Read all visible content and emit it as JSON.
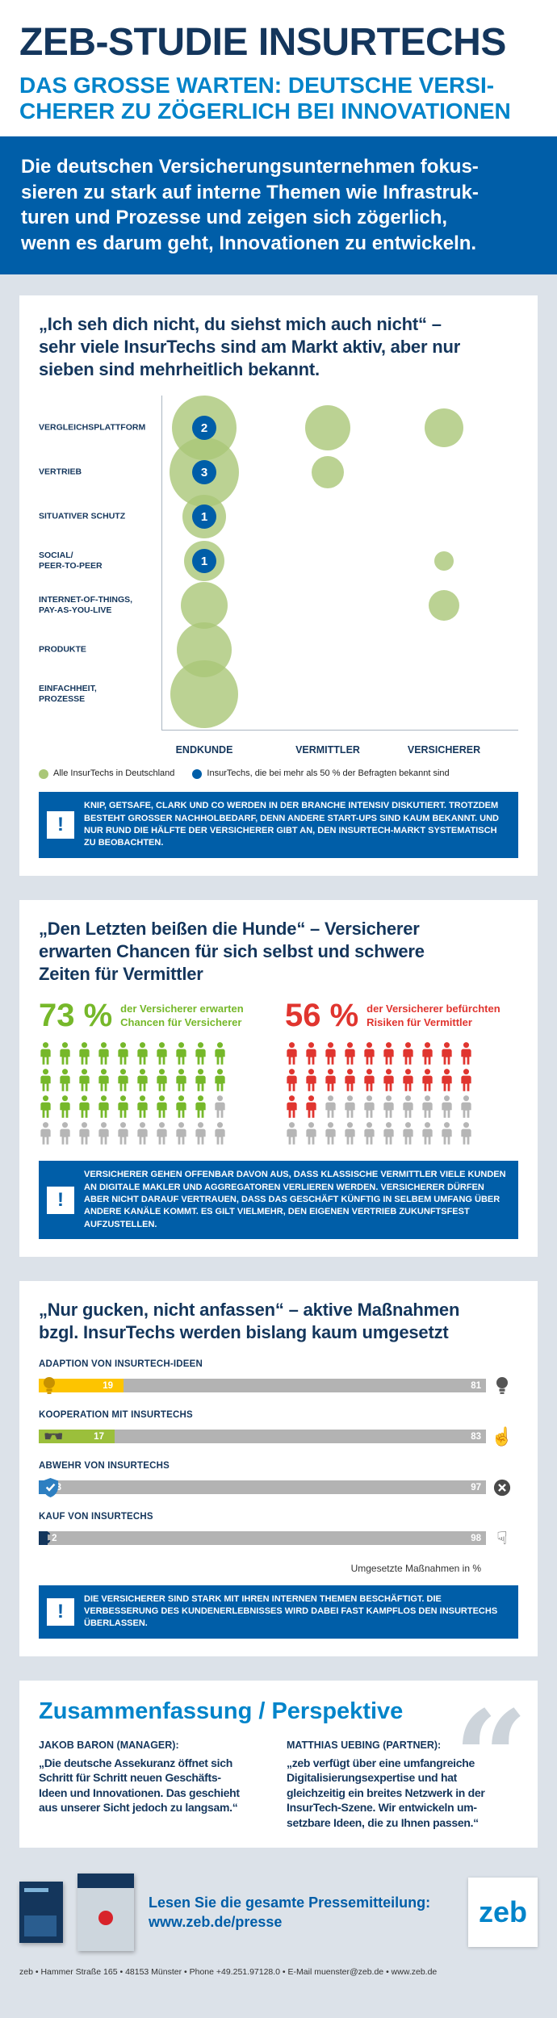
{
  "ui": {
    "warning_mark": "!",
    "quote_open": "„",
    "quote_close": "“"
  },
  "colors": {
    "navy": "#14365c",
    "blue": "#0084ca",
    "band_blue": "#005ea8",
    "bubble_green": "#aac778",
    "green": "#76b82a",
    "red": "#e0352f",
    "yellow": "#fdc400",
    "gray_bar": "#b3b3b3",
    "page_bg": "#dce2e9"
  },
  "header": {
    "title": "ZEB-STUDIE INSURTECHS",
    "subtitle": "DAS GROSSE WARTEN: DEUTSCHE VERSI-\nCHERER ZU ZÖGERLICH BEI INNOVATIONEN"
  },
  "intro": "Die deutschen Versicherungsunternehmen fokus-\nsieren zu stark auf interne Themen wie Infrastruk-\nturen und Prozesse und zeigen sich zögerlich,\nwenn es darum geht, Innovationen zu entwickeln.",
  "section1": {
    "title": "„Ich seh dich nicht, du siehst mich auch nicht“ –\nsehr viele InsurTechs sind am Markt aktiv, aber nur\nsieben sind mehrheitlich bekannt.",
    "warning": "KNIP, GETSAFE, CLARK UND CO WERDEN IN DER BRANCHE INTENSIV DISKUTIERT. TROTZDEM BESTEHT GROSSER NACHHOLBEDARF, DENN ANDERE START-UPS SIND KAUM BEKANNT. UND NUR RUND DIE HÄLFTE DER VERSICHERER GIBT AN, DEN INSURTECH-MARKT SYSTEMATISCH ZU BEOBACHTEN."
  },
  "section2": {
    "title": "„Den Letzten beißen die Hunde“ – Versicherer\nerwarten Chancen für sich selbst und schwere\nZeiten für Vermittler",
    "warning": "VERSICHERER GEHEN OFFENBAR DAVON AUS, DASS KLASSISCHE VERMITTLER VIELE KUNDEN AN DIGITALE MAKLER UND AGGREGATOREN VERLIEREN WERDEN. VERSICHERER DÜRFEN ABER NICHT DARAUF VERTRAUEN, DASS DAS GESCHÄFT KÜNFTIG IN SELBEM UMFANG ÜBER ANDERE KANÄLE KOMMT. ES GILT VIELMEHR, DEN EIGENEN VERTRIEB ZUKUNFTSFEST AUFZUSTELLEN."
  },
  "section3": {
    "title": "„Nur gucken, nicht anfassen“ – aktive Maßnahmen\nbzgl. InsurTechs werden bislang kaum umgesetzt",
    "note": "Umgesetzte Maßnahmen in %",
    "warning": "DIE VERSICHERER SIND STARK MIT IHREN INTERNEN THEMEN BESCHÄFTIGT. DIE VERBESSERUNG DES KUNDENERLEBNISSES WIRD DABEI FAST KAMPFLOS DEN INSURTECHS ÜBERLASSEN."
  },
  "section4": {
    "title": "Zusammenfassung / Perspektive",
    "quotes": [
      {
        "name": "JAKOB BARON (MANAGER):",
        "text": "„Die deutsche Assekuranz öffnet sich\nSchritt für Schritt neuen Geschäfts-\nIdeen und Innovationen. Das geschieht\naus unserer Sicht jedoch zu langsam.“"
      },
      {
        "name": "MATTHIAS UEBING (PARTNER):",
        "text": "„zeb verfügt über eine umfangreiche\nDigitalisierungsexpertise und hat\ngleichzeitig ein breites Netzwerk in der\nInsurTech-Szene. Wir entwickeln um-\nsetzbare Ideen, die zu Ihnen passen.“"
      }
    ]
  },
  "press": {
    "line1": "Lesen Sie die gesamte Pressemitteilung:",
    "line2": "www.zeb.de/presse",
    "logo": "zeb"
  },
  "footer": "zeb • Hammer Straße 165 • 48153 Münster • Phone +49.251.97128.0 • E-Mail muenster@zeb.de • www.zeb.de",
  "chart_data": [
    {
      "id": "insurtech-market-bubbles",
      "type": "scatter",
      "title": "„Ich seh dich nicht, du siehst mich auch nicht“ – sehr viele InsurTechs sind am Markt aktiv, aber nur sieben sind mehrheitlich bekannt.",
      "columns": [
        "ENDKUNDE",
        "VERMITTLER",
        "VERSICHERER"
      ],
      "rows": [
        "VERGLEICHSPLATTFORM",
        "VERTRIEB",
        "SITUATIVER SCHUTZ",
        "SOCIAL/\nPEER-TO-PEER",
        "INTERNET-OF-THINGS,\nPAY-AS-YOU-LIVE",
        "PRODUKTE",
        "EINFACHHEIT,\nPROZESSE"
      ],
      "bubbles": [
        {
          "row": 0,
          "col": 0,
          "r": 40,
          "badge": "2"
        },
        {
          "row": 1,
          "col": 0,
          "r": 43,
          "badge": "3"
        },
        {
          "row": 2,
          "col": 0,
          "r": 27,
          "badge": "1"
        },
        {
          "row": 3,
          "col": 0,
          "r": 25,
          "badge": "1"
        },
        {
          "row": 4,
          "col": 0,
          "r": 29
        },
        {
          "row": 5,
          "col": 0,
          "r": 34
        },
        {
          "row": 6,
          "col": 0,
          "r": 42
        },
        {
          "row": 0,
          "col": 1,
          "r": 28
        },
        {
          "row": 1,
          "col": 1,
          "r": 20
        },
        {
          "row": 0,
          "col": 2,
          "r": 24
        },
        {
          "row": 3,
          "col": 2,
          "r": 12
        },
        {
          "row": 4,
          "col": 2,
          "r": 19
        }
      ],
      "legend": [
        {
          "label": "Alle InsurTechs in Deutschland",
          "color": "#aac778"
        },
        {
          "label": "InsurTechs, die bei mehr als 50 % der Befragten bekannt sind",
          "color": "#005ea8"
        }
      ]
    },
    {
      "id": "chancen-risiken",
      "type": "bar",
      "title": "„Den Letzten beißen die Hunde“",
      "unit": "%",
      "icons_total": 40,
      "series": [
        {
          "name": "der Versicherer erwarten\nChancen für Versicherer",
          "value": 73,
          "value_label": "73 %",
          "color": "#76b82a"
        },
        {
          "name": "der Versicherer befürchten\nRisiken für Vermittler",
          "value": 56,
          "value_label": "56 %",
          "color": "#e0352f"
        }
      ]
    },
    {
      "id": "massnahmen",
      "type": "bar",
      "title": "„Nur gucken, nicht anfassen“ – aktive Maßnahmen bzgl. InsurTechs werden bislang kaum umgesetzt",
      "categories": [
        "ADAPTION VON INSURTECH-IDEEN",
        "KOOPERATION MIT INSURTECHS",
        "ABWEHR VON INSURTECHS",
        "KAUF VON INSURTECHS"
      ],
      "values": [
        19,
        17,
        3,
        2
      ],
      "rest_values": [
        81,
        83,
        97,
        98
      ],
      "bar_colors": [
        "#fdc400",
        "#9bbf3b",
        "#2e7fc1",
        "#14365c"
      ],
      "left_icons": [
        "lightbulb-icon",
        "handshake-icon",
        "shield-check-icon",
        "euro-icon"
      ],
      "right_icons": [
        "lightbulb-icon",
        "hand-point-icon",
        "x-circle-icon",
        "hand-grab-icon"
      ],
      "left_icon_colors": [
        "#c79100",
        "#4a4a4a",
        "#2e7fc1",
        "#14365c"
      ],
      "right_icon_colors": [
        "#555555",
        "#4a4a4a",
        "#4a4a4a",
        "#4a4a4a"
      ],
      "xlabel": "Umgesetzte Maßnahmen in %",
      "xlim": [
        0,
        100
      ]
    }
  ]
}
